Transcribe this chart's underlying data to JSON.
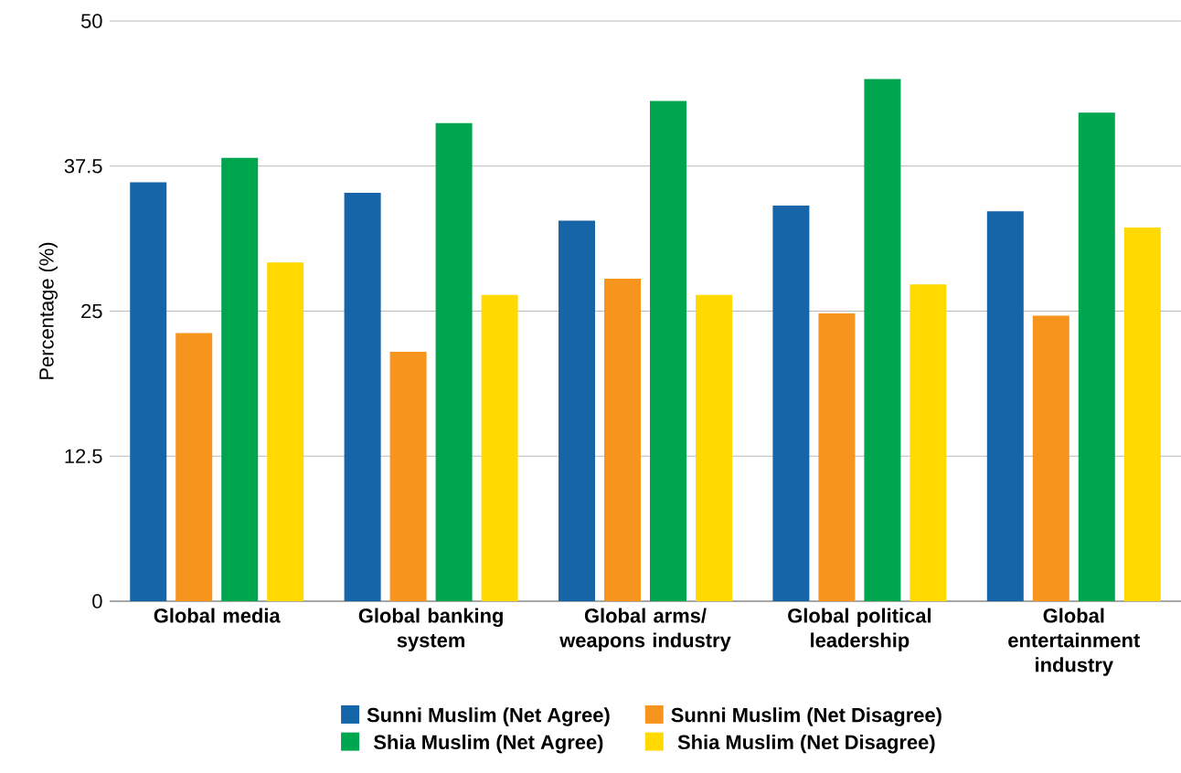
{
  "chart_data": {
    "type": "bar",
    "ylabel": "Percentage (%)",
    "categories": [
      "Global media",
      "Global banking system",
      "Global arms/ weapons industry",
      "Global political leadership",
      "Global entertainment industry"
    ],
    "series": [
      {
        "name": "Sunni Muslim (Net Agree)",
        "color": "#1565a8",
        "values": [
          36.1,
          35.2,
          32.8,
          34.1,
          33.6
        ]
      },
      {
        "name": "Sunni Muslim (Net Disagree)",
        "color": "#f7941d",
        "values": [
          23.1,
          21.5,
          27.8,
          24.8,
          24.6
        ]
      },
      {
        "name": "Shia Muslim (Net Agree)",
        "color": "#00a550",
        "values": [
          38.2,
          41.2,
          43.1,
          45.0,
          42.1
        ]
      },
      {
        "name": "Shia Muslim (Net Disagree)",
        "color": "#ffd900",
        "values": [
          29.2,
          26.4,
          26.4,
          27.3,
          32.2
        ]
      }
    ],
    "ylim": [
      0,
      50
    ],
    "yticks": [
      0,
      12.5,
      25,
      37.5,
      50
    ],
    "grid": "y",
    "legend": "bottom"
  }
}
